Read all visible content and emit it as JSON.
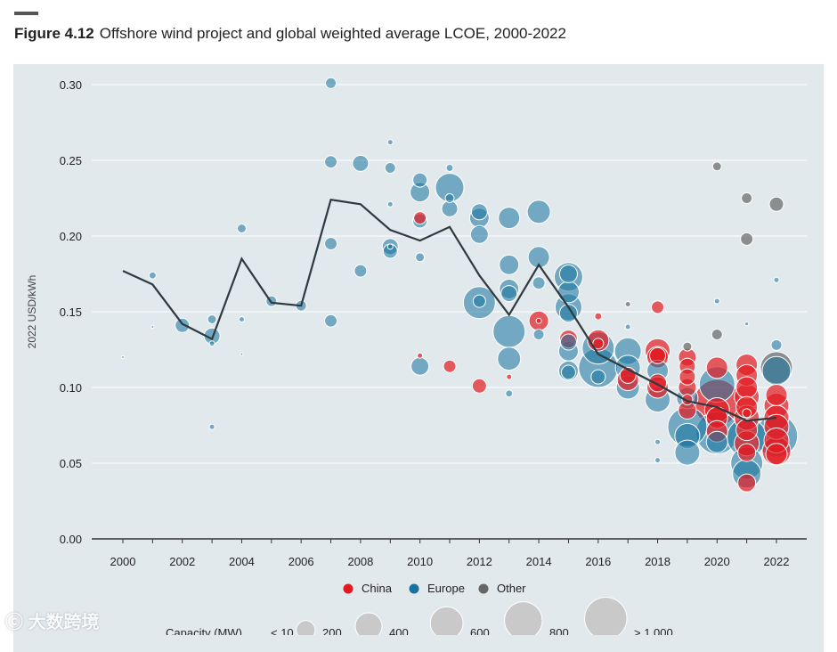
{
  "figure_label": "Figure 4.12",
  "figure_title": "Offshore wind project and global weighted average LCOE, 2000-2022",
  "watermark": "大数跨境",
  "colors": {
    "China": "#e3191f",
    "Europe": "#17729f",
    "Other": "#666666",
    "line": "#2f3a40"
  },
  "chart_data": {
    "type": "scatter",
    "title": "Offshore wind project and global weighted average LCOE, 2000-2022",
    "xlabel": "",
    "ylabel": "2022 USD/kWh",
    "xlim": [
      1999,
      2023
    ],
    "ylim": [
      0,
      0.3
    ],
    "x_ticks": [
      "2000",
      "2002",
      "2004",
      "2006",
      "2008",
      "2010",
      "2012",
      "2014",
      "2016",
      "2018",
      "2020",
      "2022"
    ],
    "y_ticks": [
      "0.00",
      "0.05",
      "0.10",
      "0.15",
      "0.20",
      "0.25",
      "0.30"
    ],
    "grid": true,
    "legend": {
      "placement": "bottom",
      "entries": [
        "China",
        "Europe",
        "Other"
      ]
    },
    "size_legend": {
      "label": "Capacity (MW)",
      "entries": [
        "< 10",
        "200",
        "400",
        "600",
        "800",
        "> 1 000"
      ],
      "values": [
        10,
        200,
        400,
        600,
        800,
        1000
      ]
    },
    "weighted_average": {
      "name": "Global weighted average",
      "x": [
        2000,
        2001,
        2002,
        2003,
        2004,
        2005,
        2006,
        2007,
        2008,
        2009,
        2010,
        2011,
        2012,
        2013,
        2014,
        2015,
        2016,
        2017,
        2018,
        2019,
        2020,
        2021,
        2022
      ],
      "y": [
        0.177,
        0.168,
        0.142,
        0.132,
        0.185,
        0.156,
        0.154,
        0.224,
        0.221,
        0.204,
        0.197,
        0.206,
        0.174,
        0.148,
        0.181,
        0.153,
        0.122,
        0.112,
        0.102,
        0.091,
        0.087,
        0.078,
        0.08
      ]
    },
    "bubbles_fields": [
      "year",
      "lcoe",
      "region",
      "capacity_mw"
    ],
    "bubbles": [
      [
        2000,
        0.12,
        "Europe",
        3
      ],
      [
        2001,
        0.174,
        "Europe",
        28
      ],
      [
        2001,
        0.14,
        "Europe",
        3
      ],
      [
        2002,
        0.141,
        "Europe",
        114
      ],
      [
        2003,
        0.134,
        "Europe",
        144
      ],
      [
        2003,
        0.145,
        "Europe",
        44
      ],
      [
        2003,
        0.129,
        "Europe",
        16
      ],
      [
        2003,
        0.074,
        "Europe",
        16
      ],
      [
        2004,
        0.205,
        "Europe",
        44
      ],
      [
        2004,
        0.145,
        "Europe",
        16
      ],
      [
        2004,
        0.122,
        "Europe",
        3
      ],
      [
        2005,
        0.157,
        "Europe",
        64
      ],
      [
        2006,
        0.154,
        "Europe",
        64
      ],
      [
        2007,
        0.301,
        "Europe",
        64
      ],
      [
        2007,
        0.249,
        "Europe",
        87
      ],
      [
        2007,
        0.195,
        "Europe",
        87
      ],
      [
        2007,
        0.144,
        "Europe",
        87
      ],
      [
        2008,
        0.248,
        "Europe",
        144
      ],
      [
        2008,
        0.177,
        "Europe",
        87
      ],
      [
        2009,
        0.262,
        "Europe",
        16
      ],
      [
        2009,
        0.245,
        "Europe",
        64
      ],
      [
        2009,
        0.221,
        "Europe",
        16
      ],
      [
        2009,
        0.193,
        "Europe",
        144
      ],
      [
        2009,
        0.19,
        "Europe",
        114
      ],
      [
        2009,
        0.193,
        "Europe",
        16
      ],
      [
        2010,
        0.237,
        "Europe",
        114
      ],
      [
        2010,
        0.229,
        "Europe",
        215
      ],
      [
        2010,
        0.21,
        "Europe",
        114
      ],
      [
        2010,
        0.212,
        "China",
        87
      ],
      [
        2010,
        0.186,
        "Europe",
        44
      ],
      [
        2010,
        0.121,
        "China",
        16
      ],
      [
        2010,
        0.114,
        "Europe",
        178
      ],
      [
        2011,
        0.245,
        "Europe",
        28
      ],
      [
        2011,
        0.232,
        "Europe",
        455
      ],
      [
        2011,
        0.225,
        "Europe",
        44
      ],
      [
        2011,
        0.218,
        "Europe",
        144
      ],
      [
        2011,
        0.114,
        "China",
        87
      ],
      [
        2012,
        0.216,
        "Europe",
        144
      ],
      [
        2012,
        0.212,
        "Europe",
        215
      ],
      [
        2012,
        0.201,
        "Europe",
        178
      ],
      [
        2012,
        0.156,
        "Europe",
        576
      ],
      [
        2012,
        0.157,
        "Europe",
        87
      ],
      [
        2012,
        0.101,
        "China",
        114
      ],
      [
        2013,
        0.212,
        "Europe",
        256
      ],
      [
        2013,
        0.181,
        "Europe",
        215
      ],
      [
        2013,
        0.165,
        "Europe",
        215
      ],
      [
        2013,
        0.162,
        "Europe",
        144
      ],
      [
        2013,
        0.137,
        "Europe",
        576
      ],
      [
        2013,
        0.119,
        "Europe",
        300
      ],
      [
        2013,
        0.107,
        "China",
        16
      ],
      [
        2013,
        0.096,
        "Europe",
        28
      ],
      [
        2014,
        0.216,
        "Europe",
        300
      ],
      [
        2014,
        0.186,
        "Europe",
        256
      ],
      [
        2014,
        0.169,
        "Europe",
        87
      ],
      [
        2014,
        0.144,
        "China",
        215
      ],
      [
        2014,
        0.135,
        "Europe",
        64
      ],
      [
        2014,
        0.144,
        "China",
        16
      ],
      [
        2015,
        0.173,
        "Europe",
        455
      ],
      [
        2015,
        0.175,
        "Europe",
        178
      ],
      [
        2015,
        0.163,
        "Europe",
        256
      ],
      [
        2015,
        0.153,
        "Europe",
        400
      ],
      [
        2015,
        0.149,
        "Europe",
        178
      ],
      [
        2015,
        0.132,
        "China",
        178
      ],
      [
        2015,
        0.13,
        "Europe",
        144
      ],
      [
        2015,
        0.124,
        "Europe",
        215
      ],
      [
        2015,
        0.111,
        "Europe",
        215
      ],
      [
        2015,
        0.11,
        "Europe",
        114
      ],
      [
        2016,
        0.147,
        "China",
        28
      ],
      [
        2016,
        0.131,
        "China",
        256
      ],
      [
        2016,
        0.126,
        "Europe",
        576
      ],
      [
        2016,
        0.113,
        "Europe",
        860
      ],
      [
        2016,
        0.107,
        "Europe",
        114
      ],
      [
        2016,
        0.129,
        "China",
        64
      ],
      [
        2017,
        0.155,
        "Other",
        16
      ],
      [
        2017,
        0.14,
        "Europe",
        16
      ],
      [
        2017,
        0.124,
        "Europe",
        400
      ],
      [
        2017,
        0.113,
        "Europe",
        348
      ],
      [
        2017,
        0.105,
        "China",
        256
      ],
      [
        2017,
        0.1,
        "Europe",
        300
      ],
      [
        2017,
        0.108,
        "China",
        144
      ],
      [
        2018,
        0.153,
        "China",
        87
      ],
      [
        2018,
        0.124,
        "China",
        348
      ],
      [
        2018,
        0.12,
        "China",
        256
      ],
      [
        2018,
        0.121,
        "China",
        144
      ],
      [
        2018,
        0.111,
        "Europe",
        256
      ],
      [
        2018,
        0.1,
        "China",
        256
      ],
      [
        2018,
        0.092,
        "Europe",
        348
      ],
      [
        2018,
        0.103,
        "China",
        178
      ],
      [
        2018,
        0.064,
        "Europe",
        16
      ],
      [
        2018,
        0.052,
        "Europe",
        16
      ],
      [
        2019,
        0.127,
        "Other",
        44
      ],
      [
        2019,
        0.12,
        "China",
        178
      ],
      [
        2019,
        0.114,
        "China",
        144
      ],
      [
        2019,
        0.107,
        "China",
        144
      ],
      [
        2019,
        0.1,
        "China",
        178
      ],
      [
        2019,
        0.093,
        "Europe",
        256
      ],
      [
        2019,
        0.085,
        "China",
        178
      ],
      [
        2019,
        0.074,
        "Europe",
        860
      ],
      [
        2019,
        0.068,
        "Europe",
        348
      ],
      [
        2019,
        0.057,
        "Europe",
        348
      ],
      [
        2019,
        0.092,
        "China",
        64
      ],
      [
        2020,
        0.246,
        "Other",
        44
      ],
      [
        2020,
        0.157,
        "Europe",
        16
      ],
      [
        2020,
        0.135,
        "Other",
        64
      ],
      [
        2020,
        0.113,
        "China",
        256
      ],
      [
        2020,
        0.102,
        "Europe",
        711
      ],
      [
        2020,
        0.09,
        "China",
        1200
      ],
      [
        2020,
        0.085,
        "China",
        348
      ],
      [
        2020,
        0.08,
        "China",
        256
      ],
      [
        2020,
        0.071,
        "China",
        256
      ],
      [
        2020,
        0.07,
        "Europe",
        1000
      ],
      [
        2020,
        0.064,
        "Europe",
        256
      ],
      [
        2021,
        0.225,
        "Other",
        64
      ],
      [
        2021,
        0.198,
        "Other",
        87
      ],
      [
        2021,
        0.142,
        "Europe",
        8
      ],
      [
        2021,
        0.115,
        "China",
        256
      ],
      [
        2021,
        0.108,
        "China",
        256
      ],
      [
        2021,
        0.1,
        "China",
        256
      ],
      [
        2021,
        0.094,
        "China",
        348
      ],
      [
        2021,
        0.087,
        "China",
        256
      ],
      [
        2021,
        0.08,
        "China",
        348
      ],
      [
        2021,
        0.072,
        "China",
        256
      ],
      [
        2021,
        0.067,
        "Europe",
        860
      ],
      [
        2021,
        0.063,
        "China",
        348
      ],
      [
        2021,
        0.057,
        "China",
        178
      ],
      [
        2021,
        0.05,
        "Europe",
        576
      ],
      [
        2021,
        0.043,
        "Europe",
        455
      ],
      [
        2021,
        0.037,
        "China",
        178
      ],
      [
        2021,
        0.083,
        "China",
        44
      ],
      [
        2022,
        0.221,
        "Other",
        114
      ],
      [
        2022,
        0.171,
        "Europe",
        16
      ],
      [
        2022,
        0.128,
        "Europe",
        64
      ],
      [
        2022,
        0.113,
        "Other",
        576
      ],
      [
        2022,
        0.111,
        "Europe",
        455
      ],
      [
        2022,
        0.095,
        "China",
        256
      ],
      [
        2022,
        0.088,
        "China",
        348
      ],
      [
        2022,
        0.08,
        "China",
        348
      ],
      [
        2022,
        0.074,
        "China",
        348
      ],
      [
        2022,
        0.068,
        "Europe",
        1000
      ],
      [
        2022,
        0.065,
        "China",
        348
      ],
      [
        2022,
        0.058,
        "China",
        455
      ],
      [
        2022,
        0.056,
        "China",
        256
      ]
    ]
  }
}
